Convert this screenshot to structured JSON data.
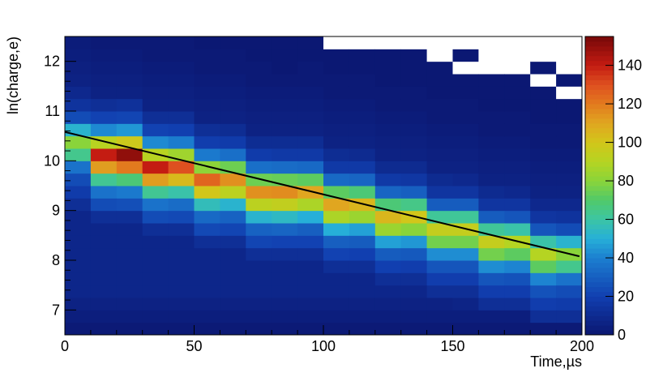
{
  "chart_data": {
    "type": "heatmap",
    "x_label": "Time,µs",
    "y_label": "ln(charge,e)",
    "xlim": [
      0,
      200
    ],
    "xticks": [
      0,
      50,
      100,
      150,
      200
    ],
    "ylim": [
      6.5,
      12.5
    ],
    "yticks": [
      7,
      8,
      9,
      10,
      11,
      12
    ],
    "zlim": [
      0,
      155
    ],
    "zticks": [
      0,
      20,
      40,
      60,
      80,
      100,
      120,
      140
    ],
    "xbins": [
      0,
      10,
      20,
      30,
      40,
      50,
      60,
      70,
      80,
      90,
      100,
      110,
      120,
      130,
      140,
      150,
      160,
      170,
      180,
      190,
      200
    ],
    "ybins": [
      6.5,
      6.75,
      7,
      7.25,
      7.5,
      7.75,
      8,
      8.25,
      8.5,
      8.75,
      9,
      9.25,
      9.5,
      9.75,
      10,
      10.25,
      10.5,
      10.75,
      11,
      11.25,
      11.5,
      11.75,
      12,
      12.25,
      12.5
    ],
    "z": [
      [
        2,
        4,
        6,
        8,
        8,
        8,
        8,
        8,
        8,
        8,
        12,
        18,
        24,
        36,
        64,
        80,
        52,
        24,
        14,
        9,
        6,
        5,
        4,
        3
      ],
      [
        2,
        4,
        6,
        8,
        8,
        8,
        8,
        8,
        8,
        12,
        24,
        36,
        63,
        112,
        140,
        91,
        42,
        21,
        12,
        6,
        5,
        4,
        3,
        2
      ],
      [
        2,
        4,
        6,
        8,
        8,
        8,
        8,
        8,
        8,
        12,
        25,
        38,
        68,
        120,
        150,
        98,
        45,
        22,
        13,
        6,
        5,
        4,
        3,
        2
      ],
      [
        2,
        4,
        6,
        8,
        8,
        8,
        8,
        8,
        12,
        24,
        36,
        63,
        112,
        140,
        91,
        42,
        21,
        12,
        6,
        5,
        4,
        3,
        2,
        2
      ],
      [
        2,
        4,
        6,
        8,
        8,
        8,
        8,
        8,
        12,
        23,
        34,
        59,
        104,
        130,
        85,
        39,
        20,
        12,
        6,
        5,
        4,
        3,
        2,
        2
      ],
      [
        2,
        4,
        6,
        8,
        8,
        8,
        8,
        12,
        23,
        33,
        56,
        100,
        125,
        81,
        38,
        19,
        12,
        6,
        5,
        4,
        3,
        2,
        2,
        1
      ],
      [
        2,
        4,
        6,
        8,
        8,
        8,
        8,
        12,
        22,
        31,
        52,
        92,
        115,
        75,
        35,
        18,
        11,
        6,
        5,
        4,
        3,
        2,
        2,
        1
      ],
      [
        2,
        4,
        6,
        8,
        8,
        8,
        12,
        22,
        31,
        52,
        92,
        115,
        75,
        35,
        18,
        11,
        6,
        5,
        4,
        3,
        2,
        2,
        1,
        1
      ],
      [
        2,
        4,
        6,
        8,
        8,
        8,
        12,
        21,
        32,
        54,
        94,
        116,
        74,
        34,
        17,
        11,
        6,
        5,
        4,
        3,
        2,
        1,
        1,
        1
      ],
      [
        2,
        4,
        6,
        8,
        8,
        8,
        12,
        21,
        30,
        50,
        88,
        110,
        72,
        33,
        17,
        11,
        6,
        5,
        4,
        3,
        2,
        2,
        1,
        1
      ],
      [
        2,
        4,
        6,
        8,
        8,
        12,
        21,
        30,
        50,
        88,
        110,
        72,
        33,
        17,
        11,
        6,
        5,
        4,
        3,
        2,
        2,
        1,
        1,
        0
      ],
      [
        2,
        4,
        6,
        8,
        8,
        12,
        20,
        29,
        47,
        84,
        105,
        68,
        32,
        17,
        10,
        6,
        5,
        4,
        3,
        2,
        2,
        1,
        1,
        0
      ],
      [
        2,
        4,
        6,
        8,
        12,
        20,
        29,
        47,
        84,
        105,
        68,
        32,
        17,
        10,
        6,
        5,
        4,
        3,
        2,
        2,
        1,
        1,
        1,
        0
      ],
      [
        2,
        4,
        6,
        8,
        12,
        19,
        28,
        45,
        80,
        100,
        65,
        30,
        16,
        10,
        6,
        5,
        4,
        3,
        2,
        2,
        1,
        1,
        1,
        0
      ],
      [
        2,
        4,
        6,
        12,
        19,
        27,
        43,
        76,
        95,
        62,
        29,
        15,
        10,
        6,
        5,
        4,
        3,
        2,
        2,
        1,
        1,
        1,
        0,
        0
      ],
      [
        2,
        4,
        7,
        12,
        19,
        27,
        43,
        76,
        95,
        62,
        29,
        15,
        9,
        6,
        5,
        4,
        3,
        2,
        2,
        1,
        1,
        0,
        1,
        0
      ],
      [
        2,
        4,
        12,
        19,
        27,
        43,
        76,
        95,
        62,
        29,
        15,
        10,
        6,
        5,
        4,
        3,
        2,
        2,
        1,
        1,
        1,
        0,
        0,
        0
      ],
      [
        2,
        4,
        12,
        19,
        26,
        41,
        72,
        90,
        59,
        27,
        15,
        9,
        6,
        5,
        4,
        3,
        2,
        2,
        1,
        1,
        1,
        0,
        0,
        0
      ],
      [
        2,
        12,
        19,
        26,
        41,
        72,
        90,
        59,
        27,
        15,
        9,
        6,
        5,
        4,
        3,
        2,
        2,
        1,
        1,
        1,
        0,
        1,
        0,
        0
      ],
      [
        2,
        12,
        18,
        24,
        36,
        64,
        80,
        52,
        24,
        14,
        9,
        6,
        5,
        4,
        3,
        2,
        2,
        1,
        1,
        0,
        1,
        0,
        0,
        0
      ]
    ],
    "colorscale": [
      [
        0,
        "#0b1670"
      ],
      [
        20,
        "#113fb0"
      ],
      [
        40,
        "#1c7fd0"
      ],
      [
        50,
        "#26afd8"
      ],
      [
        60,
        "#3cc5a4"
      ],
      [
        70,
        "#50c96a"
      ],
      [
        80,
        "#8ad43a"
      ],
      [
        90,
        "#b5d422"
      ],
      [
        100,
        "#d2c61a"
      ],
      [
        110,
        "#e0a620"
      ],
      [
        120,
        "#e27a1e"
      ],
      [
        130,
        "#de5020"
      ],
      [
        140,
        "#c41c12"
      ],
      [
        155,
        "#760808"
      ]
    ],
    "fit": {
      "x": [
        0,
        199
      ],
      "y": [
        10.58,
        8.08
      ],
      "color": "#000000"
    }
  }
}
